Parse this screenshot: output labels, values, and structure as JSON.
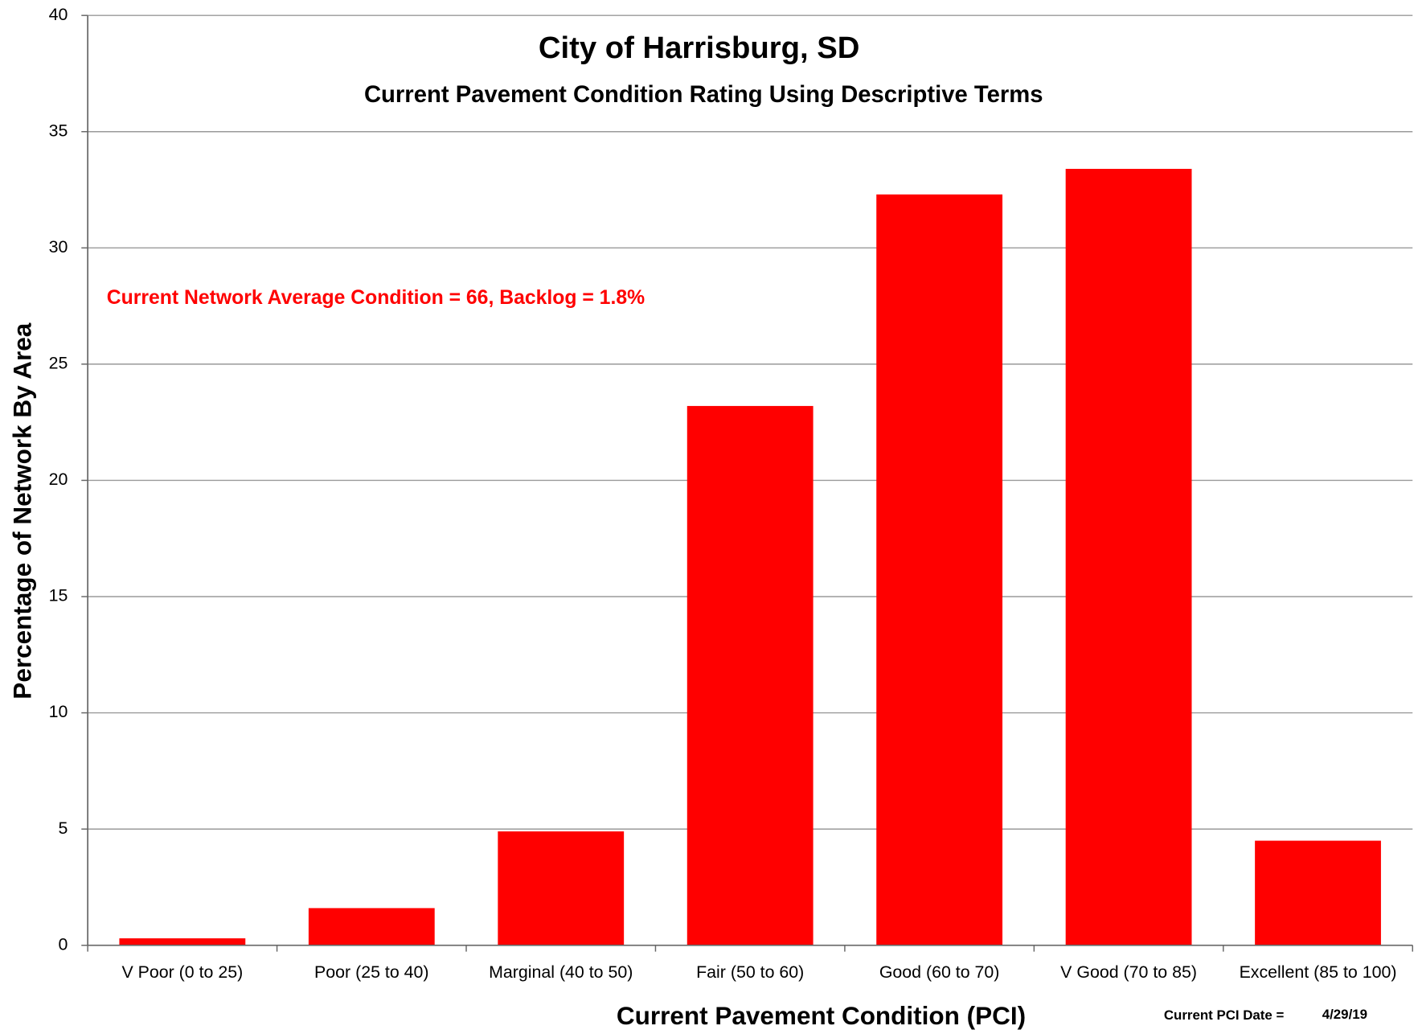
{
  "chart_data": {
    "type": "bar",
    "title": "City of Harrisburg, SD",
    "subtitle": "Current Pavement Condition Rating Using Descriptive Terms",
    "annotation": "Current Network Average Condition  = 66, Backlog = 1.8%",
    "x_label": "Current Pavement Condition (PCI)",
    "y_label": "Percentage of Network By Area",
    "footer_label": "Current PCI Date =",
    "footer_value": "4/29/19",
    "categories": [
      "V Poor (0 to 25)",
      "Poor (25 to 40)",
      "Marginal (40 to 50)",
      "Fair (50 to 60)",
      "Good (60 to 70)",
      "V Good (70 to 85)",
      "Excellent (85 to 100)"
    ],
    "values": [
      0.3,
      1.6,
      4.9,
      23.2,
      32.3,
      33.4,
      4.5
    ],
    "color": "#ff0000",
    "ylim": [
      0,
      40
    ],
    "yticks": [
      0,
      5,
      10,
      15,
      20,
      25,
      30,
      35,
      40
    ],
    "grid": true
  }
}
